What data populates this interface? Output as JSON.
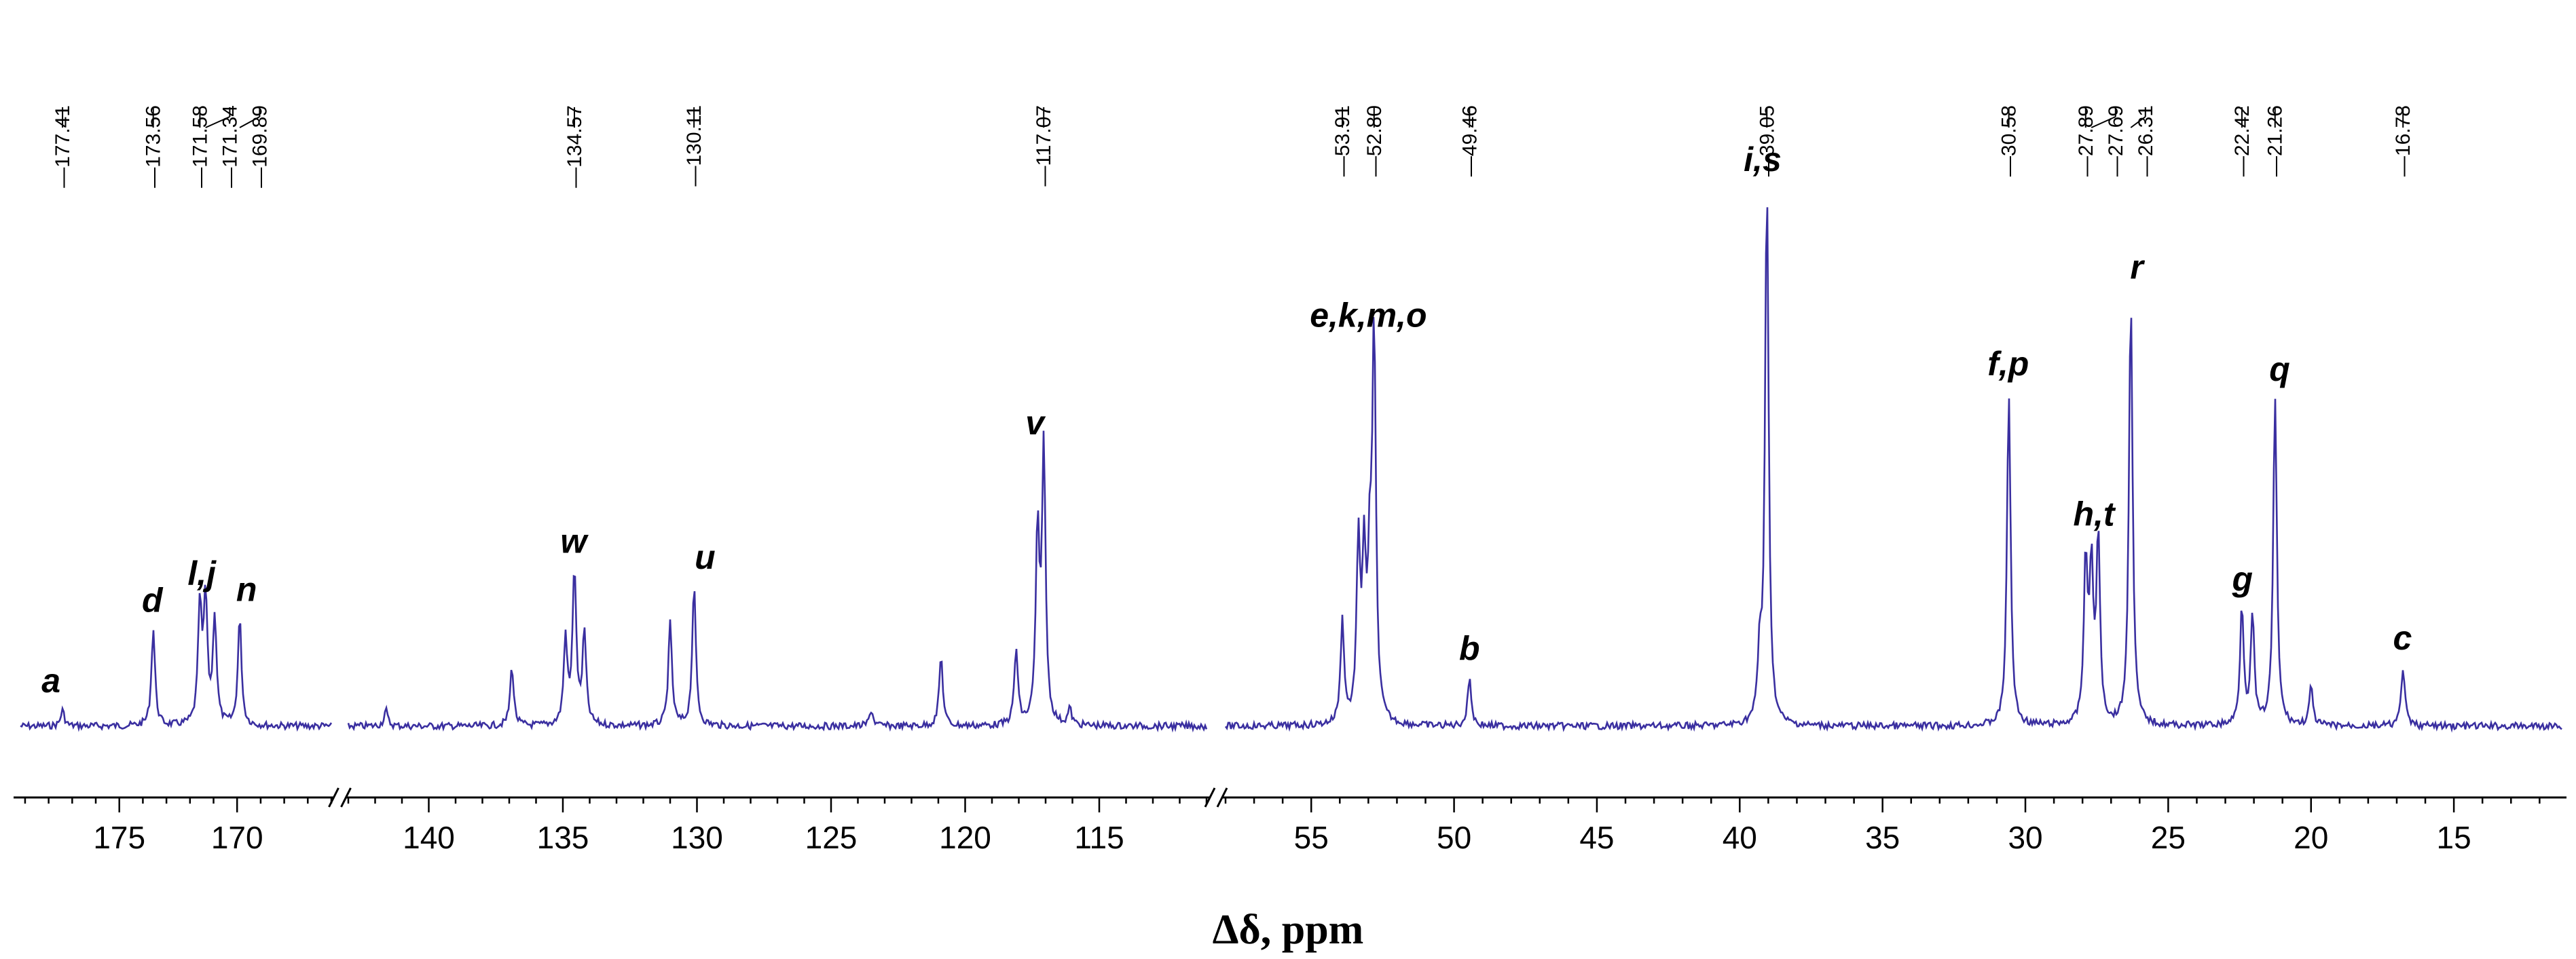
{
  "chart_data": {
    "type": "line",
    "title": "",
    "xlabel": "Δδ, ppm",
    "ylabel": "",
    "line_color": "#3a2fa0",
    "x_reversed": true,
    "grid": false,
    "axis_breaks": [
      [
        166,
        143
      ],
      [
        111,
        58
      ]
    ],
    "segments": [
      {
        "xlim": [
          179.2,
          166.0
        ],
        "ticks": [
          175,
          170
        ]
      },
      {
        "xlim": [
          143.0,
          111.0
        ],
        "ticks": [
          140,
          135,
          130,
          125,
          120,
          115
        ]
      },
      {
        "xlim": [
          58.0,
          11.2
        ],
        "ticks": [
          55,
          50,
          45,
          40,
          35,
          30,
          25,
          20,
          15
        ]
      }
    ],
    "peak_labels": [
      "177.41",
      "173.56",
      "171.58",
      "171.34",
      "169.89",
      "134.57",
      "130.11",
      "117.07",
      "53.91",
      "52.80",
      "49.46",
      "39.05",
      "30.58",
      "27.89",
      "27.69",
      "26.31",
      "22.42",
      "21.26",
      "16.78"
    ],
    "peaks": [
      {
        "x": 177.41,
        "y": 0.03
      },
      {
        "x": 173.56,
        "y": 0.18
      },
      {
        "x": 171.58,
        "y": 0.22
      },
      {
        "x": 171.34,
        "y": 0.23
      },
      {
        "x": 170.95,
        "y": 0.2
      },
      {
        "x": 169.89,
        "y": 0.2
      },
      {
        "x": 141.6,
        "y": 0.03
      },
      {
        "x": 136.9,
        "y": 0.11
      },
      {
        "x": 134.9,
        "y": 0.16
      },
      {
        "x": 134.57,
        "y": 0.29
      },
      {
        "x": 134.2,
        "y": 0.17
      },
      {
        "x": 131.0,
        "y": 0.19
      },
      {
        "x": 130.11,
        "y": 0.26
      },
      {
        "x": 123.5,
        "y": 0.03
      },
      {
        "x": 120.9,
        "y": 0.13
      },
      {
        "x": 118.1,
        "y": 0.14
      },
      {
        "x": 117.3,
        "y": 0.35
      },
      {
        "x": 117.07,
        "y": 0.51
      },
      {
        "x": 116.1,
        "y": 0.03
      },
      {
        "x": 53.91,
        "y": 0.19
      },
      {
        "x": 53.35,
        "y": 0.32
      },
      {
        "x": 53.15,
        "y": 0.29
      },
      {
        "x": 52.95,
        "y": 0.25
      },
      {
        "x": 52.8,
        "y": 0.71
      },
      {
        "x": 49.46,
        "y": 0.09
      },
      {
        "x": 39.3,
        "y": 0.12
      },
      {
        "x": 39.05,
        "y": 1.0
      },
      {
        "x": 30.58,
        "y": 0.62
      },
      {
        "x": 27.89,
        "y": 0.3
      },
      {
        "x": 27.69,
        "y": 0.28
      },
      {
        "x": 27.45,
        "y": 0.34
      },
      {
        "x": 26.31,
        "y": 0.8
      },
      {
        "x": 22.42,
        "y": 0.22
      },
      {
        "x": 22.05,
        "y": 0.2
      },
      {
        "x": 21.26,
        "y": 0.61
      },
      {
        "x": 20.0,
        "y": 0.07
      },
      {
        "x": 16.78,
        "y": 0.11
      }
    ],
    "annotations": [
      {
        "text": "a",
        "x": 177.9
      },
      {
        "text": "d",
        "x": 173.6
      },
      {
        "text": "l,j",
        "x": 171.5
      },
      {
        "text": "n",
        "x": 169.6
      },
      {
        "text": "w",
        "x": 134.6
      },
      {
        "text": "u",
        "x": 129.7
      },
      {
        "text": "v",
        "x": 117.4
      },
      {
        "text": "e,k,m,o",
        "x": 53.0
      },
      {
        "text": "b",
        "x": 49.46
      },
      {
        "text": "i,s",
        "x": 39.2
      },
      {
        "text": "f,p",
        "x": 30.6
      },
      {
        "text": "h,t",
        "x": 27.6
      },
      {
        "text": "r",
        "x": 26.1
      },
      {
        "text": "g",
        "x": 22.4
      },
      {
        "text": "q",
        "x": 21.1
      },
      {
        "text": "c",
        "x": 16.8
      }
    ]
  }
}
